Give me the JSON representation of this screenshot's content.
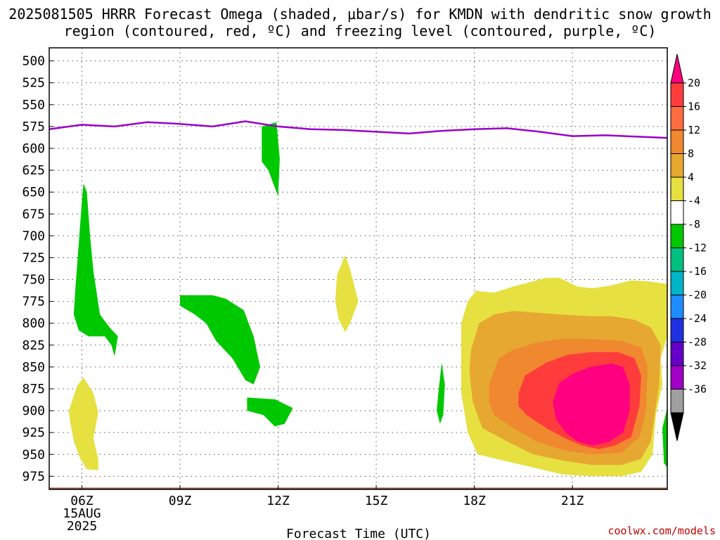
{
  "title": "2025081505 HRRR Forecast Omega (shaded, μbar/s) for KMDN with dendritic snow growth region (contoured, red, ºC) and freezing level (contoured, purple, ºC)",
  "credit": "coolwx.com/models",
  "chart_data": {
    "type": "contour",
    "xlabel": "Forecast Time (UTC)",
    "x_ticks": [
      "06Z",
      "09Z",
      "12Z",
      "15Z",
      "18Z",
      "21Z"
    ],
    "x_range_hours_utc": [
      5,
      23.9
    ],
    "date_label": [
      "15AUG",
      "2025"
    ],
    "ylabel": "",
    "y_ticks": [
      500,
      525,
      550,
      575,
      600,
      625,
      650,
      675,
      700,
      725,
      750,
      775,
      800,
      825,
      850,
      875,
      900,
      925,
      950,
      975
    ],
    "y_range_hPa": [
      990,
      485
    ],
    "y_scale": "pressure (inverted)",
    "grid": "dotted",
    "colorbar": {
      "levels": [
        20,
        16,
        12,
        8,
        4,
        -4,
        -8,
        -12,
        -16,
        -20,
        -24,
        -28,
        -32,
        -36
      ],
      "colors": [
        "#ff0080",
        "#ff3c3c",
        "#ff6c40",
        "#f08830",
        "#e6a830",
        "#e6e040",
        "#ffffff",
        "#00c800",
        "#00c080",
        "#00b4c8",
        "#1e8cff",
        "#2030e0",
        "#6400c8",
        "#a000c8",
        "#a0a0a0"
      ],
      "extend": "both",
      "units": "μbar/s"
    },
    "freezing_level": {
      "color": "#9a00c8",
      "points_hour_hPa": [
        [
          5.0,
          578
        ],
        [
          6.0,
          573
        ],
        [
          7.0,
          575
        ],
        [
          8.0,
          570
        ],
        [
          9.0,
          572
        ],
        [
          10.0,
          575
        ],
        [
          11.0,
          569
        ],
        [
          12.0,
          575
        ],
        [
          13.0,
          578
        ],
        [
          14.0,
          579
        ],
        [
          15.0,
          581
        ],
        [
          16.0,
          583
        ],
        [
          17.0,
          580
        ],
        [
          18.0,
          578
        ],
        [
          19.0,
          577
        ],
        [
          20.0,
          581
        ],
        [
          21.0,
          586
        ],
        [
          22.0,
          585
        ],
        [
          23.9,
          588
        ]
      ]
    },
    "omega_regions": [
      {
        "omega": -6,
        "color": "#00c800",
        "polygon_hour_hPa": [
          [
            5.8,
            760
          ],
          [
            5.9,
            710
          ],
          [
            6.0,
            660
          ],
          [
            6.05,
            640
          ],
          [
            6.15,
            650
          ],
          [
            6.25,
            700
          ],
          [
            6.35,
            740
          ],
          [
            6.55,
            790
          ],
          [
            6.85,
            805
          ],
          [
            7.1,
            815
          ],
          [
            7.0,
            838
          ],
          [
            6.9,
            825
          ],
          [
            6.7,
            815
          ],
          [
            6.2,
            815
          ],
          [
            5.9,
            808
          ],
          [
            5.75,
            790
          ]
        ]
      },
      {
        "omega": -6,
        "color": "#00c800",
        "polygon_hour_hPa": [
          [
            9.0,
            768
          ],
          [
            10.0,
            768
          ],
          [
            10.4,
            772
          ],
          [
            10.95,
            785
          ],
          [
            11.25,
            815
          ],
          [
            11.45,
            850
          ],
          [
            11.25,
            870
          ],
          [
            11.0,
            865
          ],
          [
            10.6,
            840
          ],
          [
            10.1,
            820
          ],
          [
            9.8,
            800
          ],
          [
            9.45,
            790
          ],
          [
            9.0,
            780
          ]
        ]
      },
      {
        "omega": -6,
        "color": "#00c800",
        "polygon_hour_hPa": [
          [
            11.5,
            575
          ],
          [
            11.95,
            570
          ],
          [
            12.05,
            612
          ],
          [
            12.0,
            655
          ],
          [
            11.7,
            625
          ],
          [
            11.5,
            615
          ]
        ]
      },
      {
        "omega": -6,
        "color": "#00c800",
        "polygon_hour_hPa": [
          [
            11.05,
            885
          ],
          [
            11.9,
            887
          ],
          [
            12.45,
            897
          ],
          [
            12.2,
            915
          ],
          [
            11.9,
            918
          ],
          [
            11.55,
            905
          ],
          [
            11.05,
            900
          ]
        ]
      },
      {
        "omega": -6,
        "color": "#00c800",
        "polygon_hour_hPa": [
          [
            16.9,
            880
          ],
          [
            17.0,
            845
          ],
          [
            17.1,
            870
          ],
          [
            17.05,
            905
          ],
          [
            16.95,
            915
          ],
          [
            16.85,
            900
          ]
        ]
      },
      {
        "omega": -6,
        "color": "#00c800",
        "polygon_hour_hPa": [
          [
            23.75,
            920
          ],
          [
            23.9,
            897
          ],
          [
            23.9,
            965
          ],
          [
            23.8,
            960
          ]
        ]
      },
      {
        "omega": 6,
        "color": "#e6e040",
        "polygon_hour_hPa": [
          [
            5.6,
            900
          ],
          [
            5.85,
            872
          ],
          [
            6.05,
            862
          ],
          [
            6.35,
            880
          ],
          [
            6.5,
            902
          ],
          [
            6.35,
            932
          ],
          [
            6.5,
            955
          ],
          [
            6.5,
            968
          ],
          [
            6.15,
            967
          ],
          [
            5.95,
            955
          ],
          [
            5.75,
            935
          ],
          [
            5.65,
            915
          ]
        ]
      },
      {
        "omega": 6,
        "color": "#e6e040",
        "polygon_hour_hPa": [
          [
            13.8,
            745
          ],
          [
            14.05,
            722
          ],
          [
            14.2,
            738
          ],
          [
            14.45,
            775
          ],
          [
            14.2,
            800
          ],
          [
            14.05,
            810
          ],
          [
            13.85,
            795
          ],
          [
            13.75,
            775
          ]
        ]
      },
      {
        "omega": 6,
        "color": "#e6e040",
        "polygon_hour_hPa": [
          [
            17.6,
            800
          ],
          [
            17.8,
            775
          ],
          [
            18.05,
            763
          ],
          [
            18.6,
            765
          ],
          [
            19.2,
            758
          ],
          [
            19.8,
            752
          ],
          [
            20.2,
            748
          ],
          [
            20.6,
            748
          ],
          [
            21.15,
            758
          ],
          [
            21.6,
            760
          ],
          [
            22.15,
            757
          ],
          [
            22.8,
            751
          ],
          [
            23.3,
            752
          ],
          [
            23.9,
            755
          ],
          [
            23.9,
            815
          ],
          [
            23.7,
            840
          ],
          [
            23.75,
            870
          ],
          [
            23.55,
            905
          ],
          [
            23.45,
            950
          ],
          [
            23.1,
            970
          ],
          [
            22.5,
            975
          ],
          [
            21.6,
            975
          ],
          [
            20.7,
            973
          ],
          [
            19.8,
            965
          ],
          [
            19.0,
            958
          ],
          [
            18.1,
            950
          ],
          [
            17.8,
            925
          ],
          [
            17.6,
            880
          ],
          [
            17.6,
            835
          ]
        ]
      },
      {
        "omega": 10,
        "color": "#e6a830",
        "polygon_hour_hPa": [
          [
            17.9,
            830
          ],
          [
            18.15,
            800
          ],
          [
            18.6,
            790
          ],
          [
            19.2,
            786
          ],
          [
            19.9,
            788
          ],
          [
            20.6,
            790
          ],
          [
            21.5,
            792
          ],
          [
            22.2,
            792
          ],
          [
            22.9,
            796
          ],
          [
            23.4,
            805
          ],
          [
            23.7,
            825
          ],
          [
            23.65,
            870
          ],
          [
            23.4,
            935
          ],
          [
            23.1,
            955
          ],
          [
            22.5,
            962
          ],
          [
            21.6,
            962
          ],
          [
            20.7,
            957
          ],
          [
            19.8,
            950
          ],
          [
            19.0,
            935
          ],
          [
            18.25,
            920
          ],
          [
            17.95,
            890
          ],
          [
            17.85,
            855
          ]
        ]
      },
      {
        "omega": 14,
        "color": "#f08830",
        "polygon_hour_hPa": [
          [
            18.45,
            870
          ],
          [
            18.75,
            840
          ],
          [
            19.2,
            830
          ],
          [
            19.9,
            822
          ],
          [
            20.6,
            818
          ],
          [
            21.5,
            818
          ],
          [
            22.5,
            820
          ],
          [
            23.1,
            828
          ],
          [
            23.3,
            850
          ],
          [
            23.25,
            900
          ],
          [
            23.05,
            930
          ],
          [
            22.5,
            948
          ],
          [
            21.6,
            950
          ],
          [
            20.7,
            945
          ],
          [
            19.9,
            935
          ],
          [
            19.2,
            920
          ],
          [
            18.6,
            905
          ],
          [
            18.45,
            890
          ]
        ]
      },
      {
        "omega": 18,
        "color": "#ff3c3c",
        "polygon_hour_hPa": [
          [
            19.35,
            880
          ],
          [
            19.55,
            860
          ],
          [
            20.2,
            845
          ],
          [
            20.85,
            836
          ],
          [
            21.6,
            833
          ],
          [
            22.4,
            833
          ],
          [
            22.9,
            840
          ],
          [
            23.1,
            860
          ],
          [
            23.05,
            895
          ],
          [
            22.8,
            930
          ],
          [
            22.3,
            940
          ],
          [
            21.8,
            944
          ],
          [
            21.3,
            940
          ],
          [
            20.8,
            932
          ],
          [
            20.2,
            920
          ],
          [
            19.6,
            905
          ],
          [
            19.35,
            895
          ]
        ]
      },
      {
        "omega": 22,
        "color": "#ff0080",
        "polygon_hour_hPa": [
          [
            20.4,
            890
          ],
          [
            20.6,
            868
          ],
          [
            21.0,
            858
          ],
          [
            21.55,
            850
          ],
          [
            22.2,
            846
          ],
          [
            22.55,
            850
          ],
          [
            22.75,
            870
          ],
          [
            22.75,
            900
          ],
          [
            22.55,
            925
          ],
          [
            22.1,
            936
          ],
          [
            21.6,
            940
          ],
          [
            21.15,
            935
          ],
          [
            20.8,
            925
          ],
          [
            20.5,
            910
          ]
        ]
      }
    ],
    "surface_band": {
      "color": "#a05a3c",
      "top_hPa": 988,
      "bottom_hPa": 992
    }
  }
}
